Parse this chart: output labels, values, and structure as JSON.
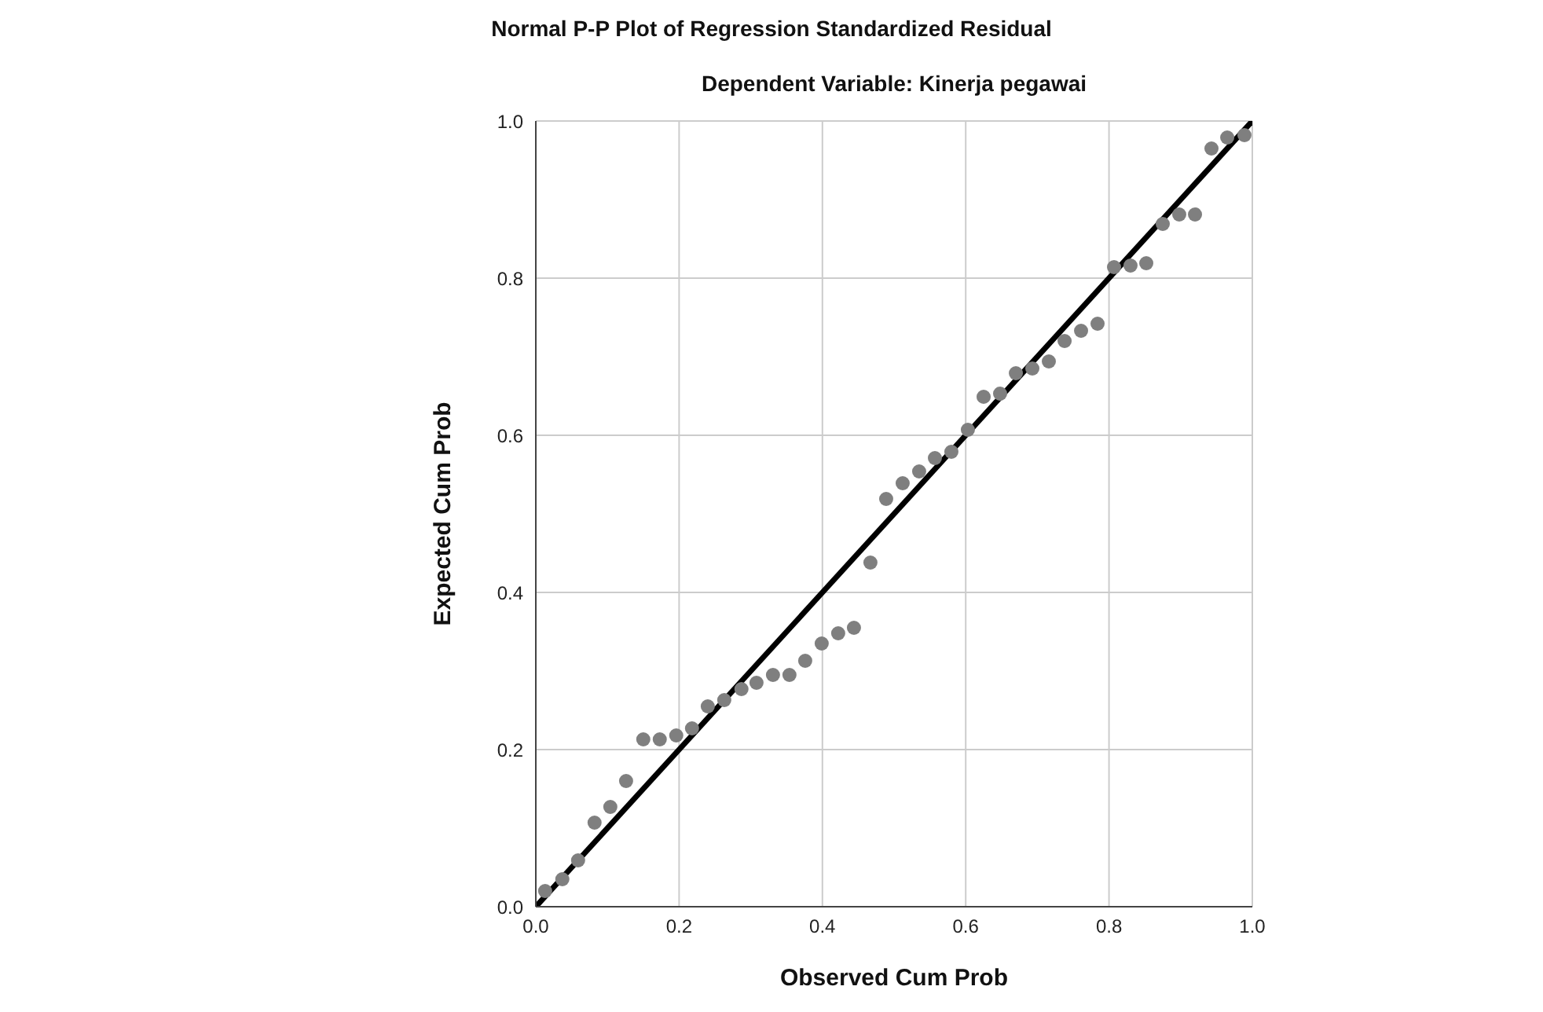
{
  "chart_data": {
    "type": "scatter",
    "title": "Normal P-P Plot of Regression Standardized Residual",
    "subtitle": "Dependent Variable: Kinerja pegawai",
    "xlabel": "Observed Cum Prob",
    "ylabel": "Expected Cum Prob",
    "xlim": [
      0,
      1
    ],
    "ylim": [
      0,
      1
    ],
    "xticks": [
      {
        "value": 0,
        "label": "0.0"
      },
      0.2,
      0.4,
      0.6,
      0.8,
      {
        "value": 1,
        "label": "1.0"
      }
    ],
    "yticks": [
      {
        "value": 0,
        "label": "0.0"
      },
      0.2,
      0.4,
      0.6,
      0.8,
      {
        "value": 1,
        "label": "1.0"
      }
    ],
    "grid": true,
    "series": [
      {
        "marker": "circle",
        "color": "#7f7f7f",
        "x": [
          0.013,
          0.037,
          0.059,
          0.082,
          0.104,
          0.126,
          0.15,
          0.173,
          0.196,
          0.218,
          0.24,
          0.263,
          0.287,
          0.308,
          0.331,
          0.354,
          0.376,
          0.399,
          0.422,
          0.444,
          0.467,
          0.489,
          0.512,
          0.535,
          0.557,
          0.58,
          0.603,
          0.625,
          0.648,
          0.67,
          0.693,
          0.716,
          0.738,
          0.761,
          0.784,
          0.807,
          0.83,
          0.852,
          0.875,
          0.898,
          0.92,
          0.943,
          0.965,
          0.989
        ],
        "values": [
          0.02,
          0.035,
          0.059,
          0.107,
          0.127,
          0.16,
          0.213,
          0.213,
          0.218,
          0.227,
          0.255,
          0.263,
          0.277,
          0.285,
          0.295,
          0.295,
          0.313,
          0.335,
          0.348,
          0.355,
          0.438,
          0.519,
          0.539,
          0.554,
          0.571,
          0.579,
          0.607,
          0.649,
          0.653,
          0.679,
          0.685,
          0.694,
          0.72,
          0.733,
          0.742,
          0.814,
          0.816,
          0.819,
          0.869,
          0.881,
          0.881,
          0.965,
          0.979,
          0.982
        ]
      },
      {
        "type": "line",
        "color": "#000000",
        "line_style": "solid",
        "x": [
          0,
          1
        ],
        "values": [
          0,
          1
        ]
      }
    ]
  }
}
